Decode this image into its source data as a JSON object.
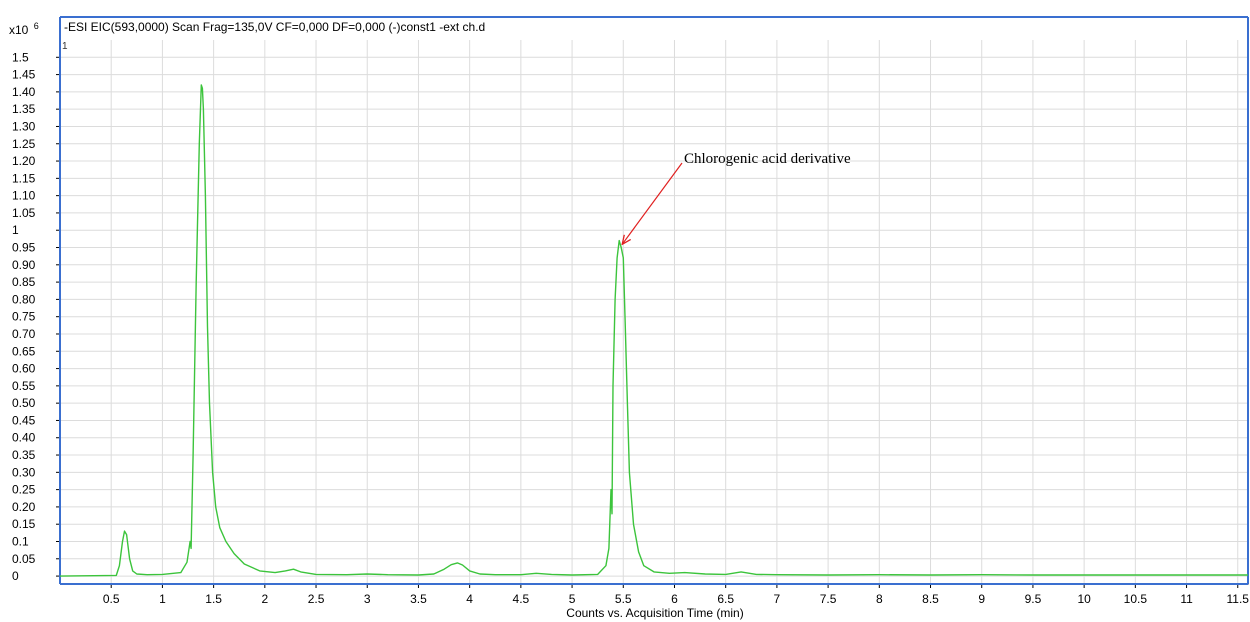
{
  "chart_data": {
    "type": "line",
    "title": "-ESI EIC(593,0000) Scan Frag=135,0V CF=0,000 DF=0,000 (-)const1 -ext ch.d",
    "xlabel": "Counts vs. Acquisition Time (min)",
    "ylabel": "",
    "y_multiplier_label": "x10",
    "y_multiplier_exp": "6",
    "plot_id": "1",
    "xlim": [
      0.0,
      11.6
    ],
    "ylim": [
      -0.02,
      1.55
    ],
    "x_ticks": [
      {
        "v": 0.5,
        "label": "0.5"
      },
      {
        "v": 1,
        "label": "1"
      },
      {
        "v": 1.5,
        "label": "1.5"
      },
      {
        "v": 2,
        "label": "2"
      },
      {
        "v": 2.5,
        "label": "2.5"
      },
      {
        "v": 3,
        "label": "3"
      },
      {
        "v": 3.5,
        "label": "3.5"
      },
      {
        "v": 4,
        "label": "4"
      },
      {
        "v": 4.5,
        "label": "4.5"
      },
      {
        "v": 5,
        "label": "5"
      },
      {
        "v": 5.5,
        "label": "5.5"
      },
      {
        "v": 6,
        "label": "6"
      },
      {
        "v": 6.5,
        "label": "6.5"
      },
      {
        "v": 7,
        "label": "7"
      },
      {
        "v": 7.5,
        "label": "7.5"
      },
      {
        "v": 8,
        "label": "8"
      },
      {
        "v": 8.5,
        "label": "8.5"
      },
      {
        "v": 9,
        "label": "9"
      },
      {
        "v": 9.5,
        "label": "9.5"
      },
      {
        "v": 10,
        "label": "10"
      },
      {
        "v": 10.5,
        "label": "10.5"
      },
      {
        "v": 11,
        "label": "11"
      },
      {
        "v": 11.5,
        "label": "11.5"
      }
    ],
    "y_ticks": [
      {
        "v": 0,
        "label": "0"
      },
      {
        "v": 0.05,
        "label": "0.05"
      },
      {
        "v": 0.1,
        "label": "0.1"
      },
      {
        "v": 0.15,
        "label": "0.15"
      },
      {
        "v": 0.2,
        "label": "0.20"
      },
      {
        "v": 0.25,
        "label": "0.25"
      },
      {
        "v": 0.3,
        "label": "0.30"
      },
      {
        "v": 0.35,
        "label": "0.35"
      },
      {
        "v": 0.4,
        "label": "0.40"
      },
      {
        "v": 0.45,
        "label": "0.45"
      },
      {
        "v": 0.5,
        "label": "0.50"
      },
      {
        "v": 0.55,
        "label": "0.55"
      },
      {
        "v": 0.6,
        "label": "0.60"
      },
      {
        "v": 0.65,
        "label": "0.65"
      },
      {
        "v": 0.7,
        "label": "0.70"
      },
      {
        "v": 0.75,
        "label": "0.75"
      },
      {
        "v": 0.8,
        "label": "0.80"
      },
      {
        "v": 0.85,
        "label": "0.85"
      },
      {
        "v": 0.9,
        "label": "0.90"
      },
      {
        "v": 0.95,
        "label": "0.95"
      },
      {
        "v": 1.0,
        "label": "1"
      },
      {
        "v": 1.05,
        "label": "1.05"
      },
      {
        "v": 1.1,
        "label": "1.10"
      },
      {
        "v": 1.15,
        "label": "1.15"
      },
      {
        "v": 1.2,
        "label": "1.20"
      },
      {
        "v": 1.25,
        "label": "1.25"
      },
      {
        "v": 1.3,
        "label": "1.30"
      },
      {
        "v": 1.35,
        "label": "1.35"
      },
      {
        "v": 1.4,
        "label": "1.40"
      },
      {
        "v": 1.45,
        "label": "1.45"
      },
      {
        "v": 1.5,
        "label": "1.5"
      }
    ],
    "grid": true,
    "series": [
      {
        "color": "#3cc43c",
        "x": [
          0.0,
          0.55,
          0.58,
          0.61,
          0.63,
          0.65,
          0.68,
          0.71,
          0.75,
          0.85,
          1.0,
          1.18,
          1.24,
          1.27,
          1.28,
          1.3,
          1.33,
          1.36,
          1.38,
          1.39,
          1.4,
          1.42,
          1.44,
          1.46,
          1.49,
          1.52,
          1.56,
          1.62,
          1.7,
          1.8,
          1.95,
          2.1,
          2.2,
          2.28,
          2.35,
          2.5,
          2.8,
          3.0,
          3.2,
          3.5,
          3.65,
          3.75,
          3.82,
          3.88,
          3.93,
          4.0,
          4.1,
          4.25,
          4.5,
          4.65,
          4.8,
          5.0,
          5.25,
          5.33,
          5.36,
          5.38,
          5.39,
          5.4,
          5.42,
          5.44,
          5.46,
          5.48,
          5.5,
          5.52,
          5.54,
          5.56,
          5.6,
          5.65,
          5.7,
          5.8,
          5.95,
          6.1,
          6.3,
          6.5,
          6.65,
          6.8,
          7.0,
          7.5,
          8.0,
          8.5,
          9.0,
          9.5,
          10.0,
          10.5,
          11.0,
          11.6
        ],
        "y": [
          0.0,
          0.002,
          0.03,
          0.1,
          0.13,
          0.12,
          0.05,
          0.015,
          0.006,
          0.004,
          0.005,
          0.01,
          0.04,
          0.1,
          0.08,
          0.35,
          0.85,
          1.25,
          1.42,
          1.41,
          1.35,
          1.1,
          0.72,
          0.5,
          0.3,
          0.2,
          0.14,
          0.1,
          0.065,
          0.035,
          0.015,
          0.01,
          0.015,
          0.02,
          0.012,
          0.005,
          0.004,
          0.006,
          0.004,
          0.003,
          0.006,
          0.02,
          0.033,
          0.038,
          0.032,
          0.015,
          0.006,
          0.004,
          0.004,
          0.008,
          0.005,
          0.003,
          0.005,
          0.03,
          0.08,
          0.25,
          0.18,
          0.55,
          0.8,
          0.92,
          0.97,
          0.95,
          0.92,
          0.72,
          0.5,
          0.3,
          0.15,
          0.07,
          0.03,
          0.012,
          0.008,
          0.01,
          0.006,
          0.005,
          0.012,
          0.005,
          0.004,
          0.003,
          0.004,
          0.003,
          0.004,
          0.003,
          0.003,
          0.003,
          0.003,
          0.003
        ]
      }
    ],
    "annotations": [
      {
        "text": "Chlorogenic acid derivative",
        "x": 5.47,
        "y": 0.965
      }
    ]
  }
}
